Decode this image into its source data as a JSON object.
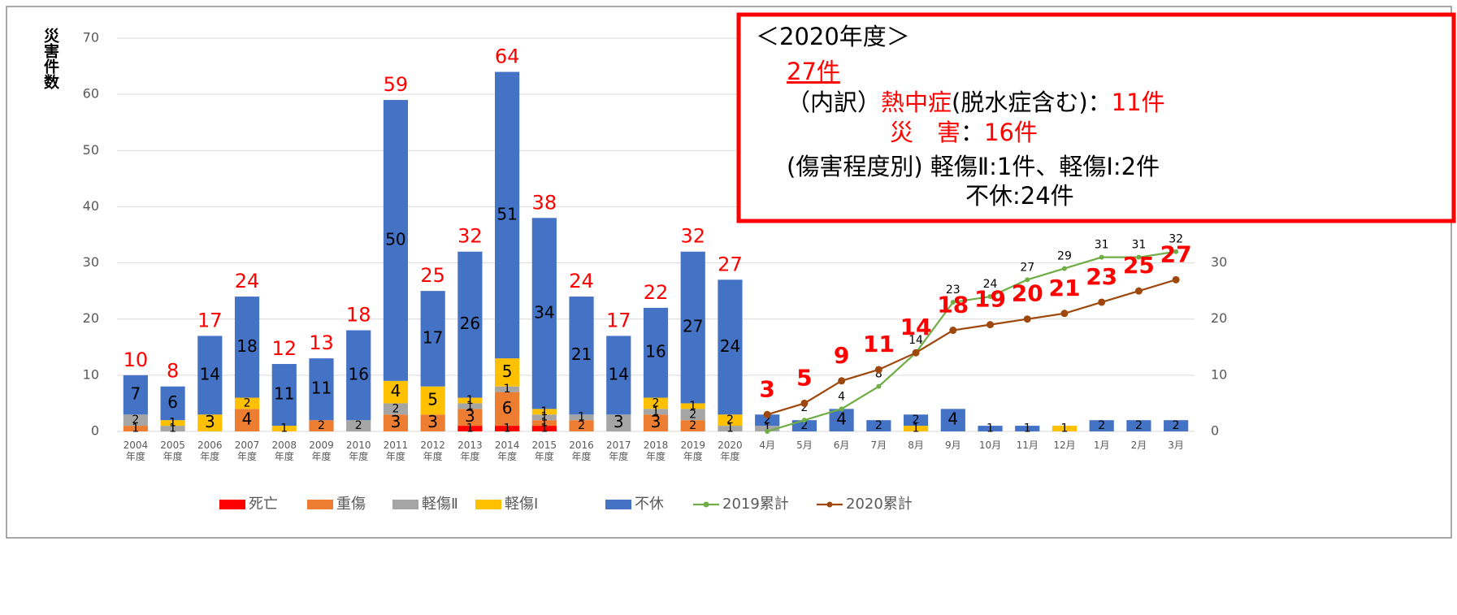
{
  "chart_data": {
    "type": "bar",
    "y_label": "災害件数",
    "categories": [
      "2004年度",
      "2005年度",
      "2006年度",
      "2007年度",
      "2008年度",
      "2009年度",
      "2010年度",
      "2011年度",
      "2012年度",
      "2013年度",
      "2014年度",
      "2015年度",
      "2016年度",
      "2017年度",
      "2018年度",
      "2019年度",
      "2020年度",
      "4月",
      "5月",
      "6月",
      "7月",
      "8月",
      "9月",
      "10月",
      "11月",
      "12月",
      "1月",
      "2月",
      "3月"
    ],
    "series": [
      {
        "name": "死亡",
        "color": "#ff0000",
        "values": [
          0,
          0,
          0,
          0,
          0,
          0,
          0,
          0,
          0,
          1,
          1,
          1,
          0,
          0,
          0,
          0,
          0,
          0,
          0,
          0,
          0,
          0,
          0,
          0,
          0,
          0,
          0,
          0,
          0
        ]
      },
      {
        "name": "重傷",
        "color": "#ed7d31",
        "values": [
          1,
          0,
          0,
          4,
          0,
          2,
          0,
          3,
          3,
          3,
          6,
          1,
          2,
          0,
          3,
          2,
          0,
          0,
          0,
          0,
          0,
          0,
          0,
          0,
          0,
          0,
          0,
          0,
          0
        ]
      },
      {
        "name": "軽傷Ⅱ",
        "color": "#a5a5a5",
        "values": [
          2,
          1,
          0,
          0,
          0,
          0,
          2,
          2,
          0,
          1,
          1,
          1,
          1,
          3,
          1,
          2,
          1,
          1,
          0,
          0,
          0,
          0,
          0,
          0,
          0,
          0,
          0,
          0,
          0
        ]
      },
      {
        "name": "軽傷Ⅰ",
        "color": "#ffc000",
        "values": [
          0,
          1,
          3,
          2,
          1,
          0,
          0,
          4,
          5,
          1,
          5,
          1,
          0,
          0,
          2,
          1,
          2,
          0,
          0,
          0,
          0,
          1,
          0,
          0,
          0,
          1,
          0,
          0,
          0
        ]
      },
      {
        "name": "不休",
        "color": "#4472c4",
        "values": [
          7,
          6,
          14,
          18,
          11,
          11,
          16,
          50,
          17,
          26,
          51,
          34,
          21,
          14,
          16,
          27,
          24,
          2,
          2,
          4,
          2,
          2,
          4,
          1,
          1,
          0,
          2,
          2,
          2
        ]
      },
      {
        "name": "2019累計",
        "type": "line",
        "axis": "y2",
        "color": "#70ad47",
        "values": [
          null,
          null,
          null,
          null,
          null,
          null,
          null,
          null,
          null,
          null,
          null,
          null,
          null,
          null,
          null,
          null,
          null,
          0,
          2,
          4,
          8,
          14,
          23,
          24,
          27,
          29,
          31,
          31,
          32
        ],
        "value_labels": [
          null,
          null,
          null,
          null,
          null,
          null,
          null,
          null,
          null,
          null,
          null,
          null,
          null,
          null,
          null,
          null,
          null,
          null,
          "2",
          "4",
          "8",
          "14",
          "23",
          "24",
          "27",
          "29",
          "31",
          "31",
          "32"
        ]
      },
      {
        "name": "2020累計",
        "type": "line",
        "axis": "y2",
        "color": "#9e480e",
        "values": [
          null,
          null,
          null,
          null,
          null,
          null,
          null,
          null,
          null,
          null,
          null,
          null,
          null,
          null,
          null,
          null,
          null,
          3,
          5,
          9,
          11,
          14,
          18,
          19,
          20,
          21,
          23,
          25,
          27
        ]
      }
    ],
    "totals": [
      10,
      8,
      17,
      24,
      12,
      13,
      18,
      59,
      25,
      32,
      64,
      38,
      24,
      17,
      22,
      32,
      27,
      null,
      null,
      null,
      null,
      null,
      null,
      null,
      null,
      null,
      null,
      null,
      null
    ],
    "ylim": [
      0,
      70
    ],
    "yticks": [
      0,
      10,
      20,
      30,
      40,
      50,
      60,
      70
    ],
    "y2lim": [
      0,
      70
    ],
    "y2ticks": [
      0,
      10,
      20,
      30
    ],
    "grid": true,
    "legend": "bottom",
    "annotation": {
      "border_color": "#ff0000",
      "lines": [
        [
          {
            "text": "＜2020年度＞",
            "color": "#000000"
          }
        ],
        [
          {
            "text": "27件",
            "color": "#ff0000",
            "underline": true
          }
        ],
        [
          {
            "text": "（内訳）",
            "color": "#000000"
          },
          {
            "text": "熱中症",
            "color": "#ff0000"
          },
          {
            "text": "(脱水症含む)：",
            "color": "#000000"
          },
          {
            "text": "11件",
            "color": "#ff0000"
          }
        ],
        [
          {
            "text": "災　害",
            "color": "#ff0000"
          },
          {
            "text": "：",
            "color": "#000000"
          },
          {
            "text": "16件",
            "color": "#ff0000"
          }
        ],
        [
          {
            "text": "(傷害程度別) 軽傷Ⅱ:1件、軽傷Ⅰ:2件",
            "color": "#000000"
          }
        ],
        [
          {
            "text": "不休:24件",
            "color": "#000000"
          }
        ]
      ]
    }
  }
}
